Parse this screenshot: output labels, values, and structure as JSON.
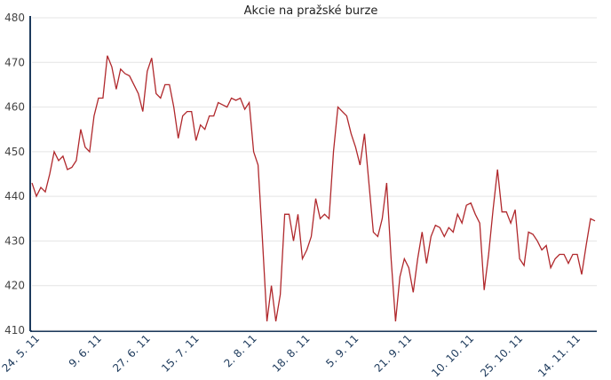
{
  "chart_data": {
    "type": "line",
    "title": "Akcie na pražské burze",
    "categories": [
      null,
      "24. 5. 11",
      null,
      null,
      null,
      null,
      null,
      null,
      null,
      null,
      null,
      null,
      null,
      null,
      null,
      "9. 6. 11",
      null,
      null,
      null,
      null,
      null,
      null,
      null,
      null,
      null,
      null,
      "27. 6. 11",
      null,
      null,
      null,
      null,
      null,
      null,
      null,
      null,
      null,
      null,
      "15. 7. 11",
      null,
      null,
      null,
      null,
      null,
      null,
      null,
      null,
      null,
      null,
      null,
      null,
      "2. 8. 11",
      null,
      null,
      null,
      null,
      null,
      null,
      null,
      null,
      null,
      null,
      null,
      "18. 8. 11",
      null,
      null,
      null,
      null,
      null,
      null,
      null,
      null,
      null,
      null,
      "5. 9. 11",
      null,
      null,
      null,
      null,
      null,
      null,
      null,
      null,
      null,
      null,
      null,
      "21. 9. 11",
      null,
      null,
      null,
      null,
      null,
      null,
      null,
      null,
      null,
      null,
      null,
      null,
      null,
      "10. 10. 11",
      null,
      null,
      null,
      null,
      null,
      null,
      null,
      null,
      null,
      null,
      "25. 10. 11",
      null,
      null,
      null,
      null,
      null,
      null,
      null,
      null,
      null,
      null,
      null,
      null,
      "14. 11. 11",
      null,
      null,
      null,
      null
    ],
    "values": [
      443,
      440,
      442,
      441,
      445,
      450,
      448,
      449,
      446,
      446.5,
      448,
      455,
      451,
      450,
      458,
      462,
      462,
      471.5,
      469,
      464,
      468.5,
      467.5,
      467,
      465,
      463,
      459,
      468,
      471,
      463,
      462,
      465,
      465,
      460,
      453,
      458,
      459,
      459,
      452.5,
      456,
      455,
      458,
      458,
      461,
      460.5,
      460,
      462,
      461.5,
      462,
      459.5,
      461,
      450,
      447,
      430,
      412,
      420,
      412,
      418,
      436,
      436,
      430,
      436,
      426,
      428,
      431,
      439.5,
      435,
      436,
      435,
      450,
      460,
      459,
      458,
      454,
      451,
      447,
      454,
      443,
      432,
      431,
      435,
      443,
      426,
      412,
      422,
      426,
      424,
      418.5,
      426,
      432,
      425,
      431,
      433.5,
      433,
      431,
      433,
      432,
      436,
      434,
      438,
      438.5,
      436,
      434,
      419,
      427,
      437,
      446,
      436.5,
      436.5,
      434,
      437,
      426,
      424.5,
      432,
      431.5,
      430,
      428,
      429,
      424,
      426,
      427,
      427,
      425,
      427,
      427,
      422.5,
      429,
      435,
      434.5
    ],
    "color": "#b0282c",
    "ylim": [
      410,
      480
    ],
    "yticks": [
      410,
      420,
      430,
      440,
      450,
      460,
      470,
      480
    ],
    "grid": true
  }
}
